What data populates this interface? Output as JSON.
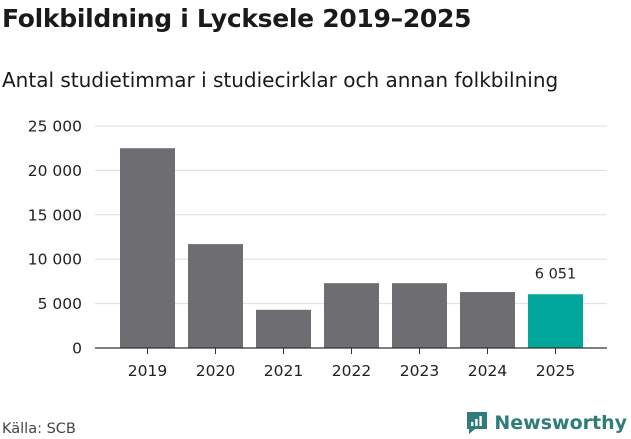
{
  "chart_data": {
    "type": "bar",
    "title": "Folkbildning i Lycksele 2019–2025",
    "subtitle": "Antal studietimmar i studiecirklar och annan folkbilning",
    "categories": [
      "2019",
      "2020",
      "2021",
      "2022",
      "2023",
      "2024",
      "2025"
    ],
    "values": [
      22500,
      11700,
      4300,
      7300,
      7300,
      6300,
      6051
    ],
    "ylim": [
      0,
      25000
    ],
    "yticks": [
      0,
      5000,
      10000,
      15000,
      20000,
      25000
    ],
    "ytick_labels": [
      "0",
      "5 000",
      "10 000",
      "15 000",
      "20 000",
      "25 000"
    ],
    "grid": true,
    "highlight_index": 6,
    "data_labels": [
      {
        "index": 6,
        "text": "6 051"
      }
    ],
    "colors": {
      "bar": "#6e6d72",
      "highlight": "#00a699",
      "grid": "#dddddd",
      "axis": "#333333"
    }
  },
  "footer": {
    "source": "Källa: SCB",
    "brand": "Newsworthy"
  },
  "icons": {
    "brand": "newsworthy-logo-icon"
  },
  "brand_color": "#2e7d7a"
}
